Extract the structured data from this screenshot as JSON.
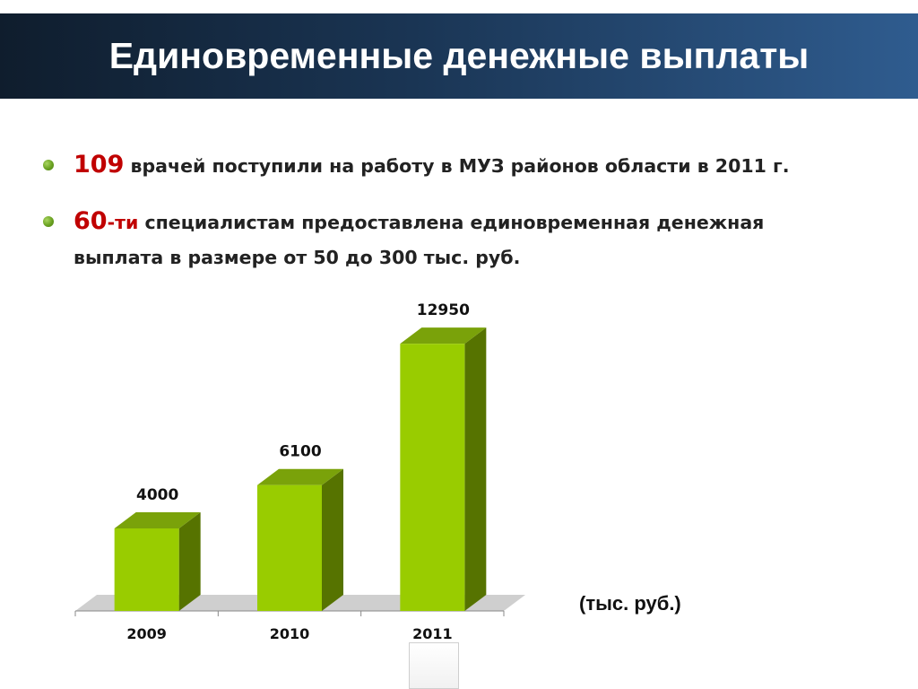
{
  "slide": {
    "title": "Единовременные денежные выплаты",
    "bullets": [
      {
        "number": "109",
        "suffix": "",
        "text": "врачей  поступили на работу в МУЗ районов области  в 2011 г."
      },
      {
        "number": "60",
        "suffix": "-ти",
        "text": "специалистам предоставлена единовременная денежная",
        "text2": "выплата в размере от 50 до 300 тыс. руб."
      }
    ],
    "unit_label": "(тыс. руб.)"
  },
  "colors": {
    "bar_front": "#99cc00",
    "bar_top": "#7aa20a",
    "bar_side": "#567300",
    "number_accent": "#c00000",
    "bullet_dot": "#6aa121"
  },
  "chart_data": {
    "type": "bar",
    "categories": [
      "2009",
      "2010",
      "2011"
    ],
    "values": [
      4000,
      6100,
      12950
    ],
    "data_labels": [
      "4000",
      "6100",
      "12950"
    ],
    "title": "",
    "xlabel": "",
    "ylabel": "",
    "unit": "(тыс. руб.)",
    "ylim": [
      0,
      15000
    ],
    "grid": false,
    "legend": "none",
    "style": "3d-column"
  }
}
